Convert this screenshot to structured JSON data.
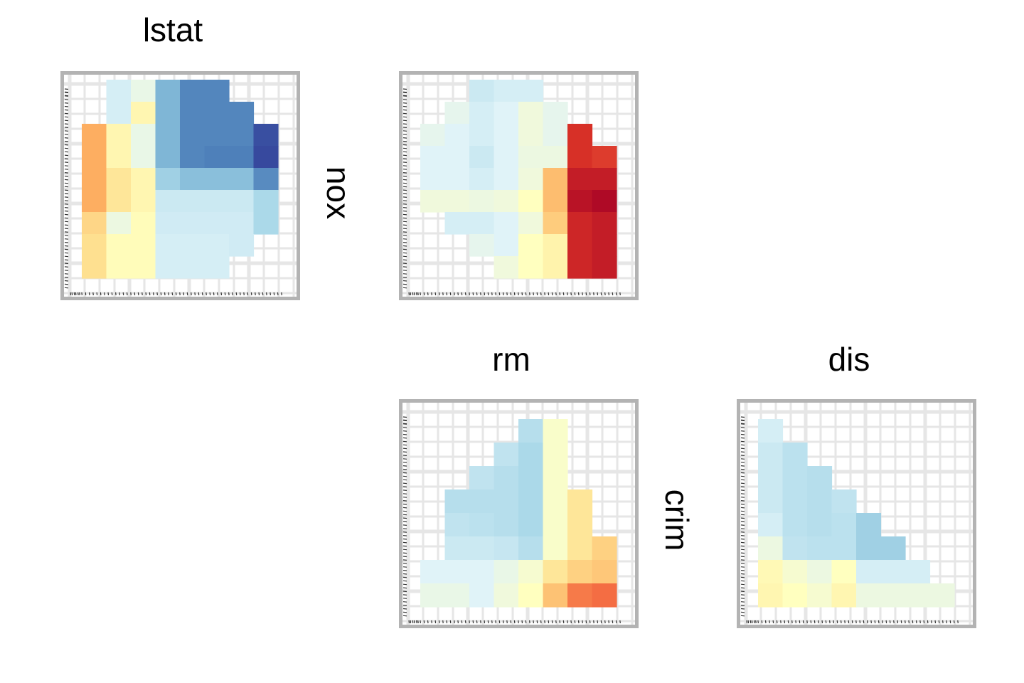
{
  "figure": {
    "col_labels": {
      "lstat": "lstat",
      "rm": "rm",
      "dis": "dis"
    },
    "row_labels": {
      "nox": "nox",
      "crim": "crim"
    }
  },
  "colors": {
    "frame": "#b3b3b3",
    "grid": "#e6e6e6",
    "palette_RdYlBu": [
      "#a50026",
      "#d73027",
      "#f46d43",
      "#fdae61",
      "#fee090",
      "#ffffbf",
      "#e0f3f8",
      "#abd9e9",
      "#74add1",
      "#4575b4",
      "#313695"
    ]
  },
  "chart_data": [
    {
      "type": "heatmap",
      "panel": "lstat-nox",
      "x_variable": "lstat",
      "y_variable": "nox",
      "grid_cols": 8,
      "grid_rows": 9,
      "grid": true,
      "cells": [
        {
          "col": 1,
          "row": 0,
          "value": 0.62
        },
        {
          "col": 2,
          "row": 0,
          "value": 0.57
        },
        {
          "col": 3,
          "row": 0,
          "value": 0.78
        },
        {
          "col": 4,
          "row": 0,
          "value": 0.87
        },
        {
          "col": 5,
          "row": 0,
          "value": 0.87
        },
        {
          "col": 1,
          "row": 1,
          "value": 0.62
        },
        {
          "col": 2,
          "row": 1,
          "value": 0.47
        },
        {
          "col": 3,
          "row": 1,
          "value": 0.78
        },
        {
          "col": 4,
          "row": 1,
          "value": 0.87
        },
        {
          "col": 5,
          "row": 1,
          "value": 0.87
        },
        {
          "col": 6,
          "row": 1,
          "value": 0.87
        },
        {
          "col": 0,
          "row": 2,
          "value": 0.3
        },
        {
          "col": 1,
          "row": 2,
          "value": 0.47
        },
        {
          "col": 2,
          "row": 2,
          "value": 0.57
        },
        {
          "col": 3,
          "row": 2,
          "value": 0.78
        },
        {
          "col": 4,
          "row": 2,
          "value": 0.87
        },
        {
          "col": 5,
          "row": 2,
          "value": 0.87
        },
        {
          "col": 6,
          "row": 2,
          "value": 0.87
        },
        {
          "col": 7,
          "row": 2,
          "value": 0.96
        },
        {
          "col": 0,
          "row": 3,
          "value": 0.3
        },
        {
          "col": 1,
          "row": 3,
          "value": 0.47
        },
        {
          "col": 2,
          "row": 3,
          "value": 0.57
        },
        {
          "col": 3,
          "row": 3,
          "value": 0.78
        },
        {
          "col": 4,
          "row": 3,
          "value": 0.87
        },
        {
          "col": 5,
          "row": 3,
          "value": 0.88
        },
        {
          "col": 6,
          "row": 3,
          "value": 0.88
        },
        {
          "col": 7,
          "row": 3,
          "value": 0.97
        },
        {
          "col": 0,
          "row": 4,
          "value": 0.3
        },
        {
          "col": 1,
          "row": 4,
          "value": 0.42
        },
        {
          "col": 2,
          "row": 4,
          "value": 0.47
        },
        {
          "col": 3,
          "row": 4,
          "value": 0.72
        },
        {
          "col": 4,
          "row": 4,
          "value": 0.76
        },
        {
          "col": 5,
          "row": 4,
          "value": 0.76
        },
        {
          "col": 6,
          "row": 4,
          "value": 0.76
        },
        {
          "col": 7,
          "row": 4,
          "value": 0.86
        },
        {
          "col": 0,
          "row": 5,
          "value": 0.3
        },
        {
          "col": 1,
          "row": 5,
          "value": 0.42
        },
        {
          "col": 2,
          "row": 5,
          "value": 0.47
        },
        {
          "col": 3,
          "row": 5,
          "value": 0.64
        },
        {
          "col": 4,
          "row": 5,
          "value": 0.64
        },
        {
          "col": 5,
          "row": 5,
          "value": 0.64
        },
        {
          "col": 6,
          "row": 5,
          "value": 0.64
        },
        {
          "col": 7,
          "row": 5,
          "value": 0.7
        },
        {
          "col": 0,
          "row": 6,
          "value": 0.38
        },
        {
          "col": 1,
          "row": 6,
          "value": 0.56
        },
        {
          "col": 2,
          "row": 6,
          "value": 0.49
        },
        {
          "col": 3,
          "row": 6,
          "value": 0.63
        },
        {
          "col": 4,
          "row": 6,
          "value": 0.63
        },
        {
          "col": 5,
          "row": 6,
          "value": 0.63
        },
        {
          "col": 6,
          "row": 6,
          "value": 0.63
        },
        {
          "col": 7,
          "row": 6,
          "value": 0.7
        },
        {
          "col": 0,
          "row": 7,
          "value": 0.4
        },
        {
          "col": 1,
          "row": 7,
          "value": 0.49
        },
        {
          "col": 2,
          "row": 7,
          "value": 0.49
        },
        {
          "col": 3,
          "row": 7,
          "value": 0.62
        },
        {
          "col": 4,
          "row": 7,
          "value": 0.62
        },
        {
          "col": 5,
          "row": 7,
          "value": 0.62
        },
        {
          "col": 6,
          "row": 7,
          "value": 0.63
        },
        {
          "col": 0,
          "row": 8,
          "value": 0.4
        },
        {
          "col": 1,
          "row": 8,
          "value": 0.49
        },
        {
          "col": 2,
          "row": 8,
          "value": 0.49
        },
        {
          "col": 3,
          "row": 8,
          "value": 0.62
        },
        {
          "col": 4,
          "row": 8,
          "value": 0.62
        },
        {
          "col": 5,
          "row": 8,
          "value": 0.62
        }
      ]
    },
    {
      "type": "heatmap",
      "panel": "rm-nox",
      "x_variable": "rm",
      "y_variable": "nox",
      "grid_cols": 8,
      "grid_rows": 9,
      "grid": true,
      "cells": [
        {
          "col": 2,
          "row": 0,
          "value": 0.64
        },
        {
          "col": 3,
          "row": 0,
          "value": 0.62
        },
        {
          "col": 4,
          "row": 0,
          "value": 0.62
        },
        {
          "col": 1,
          "row": 1,
          "value": 0.58
        },
        {
          "col": 2,
          "row": 1,
          "value": 0.62
        },
        {
          "col": 3,
          "row": 1,
          "value": 0.6
        },
        {
          "col": 4,
          "row": 1,
          "value": 0.55
        },
        {
          "col": 5,
          "row": 1,
          "value": 0.58
        },
        {
          "col": 0,
          "row": 2,
          "value": 0.58
        },
        {
          "col": 1,
          "row": 2,
          "value": 0.6
        },
        {
          "col": 2,
          "row": 2,
          "value": 0.62
        },
        {
          "col": 3,
          "row": 2,
          "value": 0.6
        },
        {
          "col": 4,
          "row": 2,
          "value": 0.55
        },
        {
          "col": 5,
          "row": 2,
          "value": 0.58
        },
        {
          "col": 6,
          "row": 2,
          "value": 0.1
        },
        {
          "col": 0,
          "row": 3,
          "value": 0.6
        },
        {
          "col": 1,
          "row": 3,
          "value": 0.6
        },
        {
          "col": 2,
          "row": 3,
          "value": 0.64
        },
        {
          "col": 3,
          "row": 3,
          "value": 0.6
        },
        {
          "col": 4,
          "row": 3,
          "value": 0.56
        },
        {
          "col": 5,
          "row": 3,
          "value": 0.56
        },
        {
          "col": 6,
          "row": 3,
          "value": 0.1
        },
        {
          "col": 7,
          "row": 3,
          "value": 0.12
        },
        {
          "col": 0,
          "row": 4,
          "value": 0.6
        },
        {
          "col": 1,
          "row": 4,
          "value": 0.6
        },
        {
          "col": 2,
          "row": 4,
          "value": 0.62
        },
        {
          "col": 3,
          "row": 4,
          "value": 0.6
        },
        {
          "col": 4,
          "row": 4,
          "value": 0.55
        },
        {
          "col": 5,
          "row": 4,
          "value": 0.33
        },
        {
          "col": 6,
          "row": 4,
          "value": 0.06
        },
        {
          "col": 7,
          "row": 4,
          "value": 0.06
        },
        {
          "col": 0,
          "row": 5,
          "value": 0.55
        },
        {
          "col": 1,
          "row": 5,
          "value": 0.55
        },
        {
          "col": 2,
          "row": 5,
          "value": 0.56
        },
        {
          "col": 3,
          "row": 5,
          "value": 0.55
        },
        {
          "col": 4,
          "row": 5,
          "value": 0.5
        },
        {
          "col": 5,
          "row": 5,
          "value": 0.33
        },
        {
          "col": 6,
          "row": 5,
          "value": 0.04
        },
        {
          "col": 7,
          "row": 5,
          "value": 0.02
        },
        {
          "col": 1,
          "row": 6,
          "value": 0.62
        },
        {
          "col": 2,
          "row": 6,
          "value": 0.62
        },
        {
          "col": 3,
          "row": 6,
          "value": 0.6
        },
        {
          "col": 4,
          "row": 6,
          "value": 0.55
        },
        {
          "col": 5,
          "row": 6,
          "value": 0.36
        },
        {
          "col": 6,
          "row": 6,
          "value": 0.08
        },
        {
          "col": 7,
          "row": 6,
          "value": 0.06
        },
        {
          "col": 2,
          "row": 7,
          "value": 0.58
        },
        {
          "col": 3,
          "row": 7,
          "value": 0.6
        },
        {
          "col": 4,
          "row": 7,
          "value": 0.5
        },
        {
          "col": 5,
          "row": 7,
          "value": 0.46
        },
        {
          "col": 6,
          "row": 7,
          "value": 0.08
        },
        {
          "col": 7,
          "row": 7,
          "value": 0.06
        },
        {
          "col": 3,
          "row": 8,
          "value": 0.55
        },
        {
          "col": 4,
          "row": 8,
          "value": 0.5
        },
        {
          "col": 5,
          "row": 8,
          "value": 0.46
        },
        {
          "col": 6,
          "row": 8,
          "value": 0.08
        },
        {
          "col": 7,
          "row": 8,
          "value": 0.06
        }
      ]
    },
    {
      "type": "heatmap",
      "panel": "rm-crim",
      "x_variable": "rm",
      "y_variable": "crim",
      "grid_cols": 8,
      "grid_rows": 8,
      "grid": true,
      "cells": [
        {
          "col": 4,
          "row": 0,
          "value": 0.68
        },
        {
          "col": 5,
          "row": 0,
          "value": 0.52
        },
        {
          "col": 3,
          "row": 1,
          "value": 0.66
        },
        {
          "col": 4,
          "row": 1,
          "value": 0.7
        },
        {
          "col": 5,
          "row": 1,
          "value": 0.52
        },
        {
          "col": 2,
          "row": 2,
          "value": 0.66
        },
        {
          "col": 3,
          "row": 2,
          "value": 0.68
        },
        {
          "col": 4,
          "row": 2,
          "value": 0.7
        },
        {
          "col": 5,
          "row": 2,
          "value": 0.52
        },
        {
          "col": 1,
          "row": 3,
          "value": 0.68
        },
        {
          "col": 2,
          "row": 3,
          "value": 0.68
        },
        {
          "col": 3,
          "row": 3,
          "value": 0.68
        },
        {
          "col": 4,
          "row": 3,
          "value": 0.7
        },
        {
          "col": 5,
          "row": 3,
          "value": 0.52
        },
        {
          "col": 6,
          "row": 3,
          "value": 0.42
        },
        {
          "col": 1,
          "row": 4,
          "value": 0.66
        },
        {
          "col": 2,
          "row": 4,
          "value": 0.67
        },
        {
          "col": 3,
          "row": 4,
          "value": 0.68
        },
        {
          "col": 4,
          "row": 4,
          "value": 0.7
        },
        {
          "col": 5,
          "row": 4,
          "value": 0.52
        },
        {
          "col": 6,
          "row": 4,
          "value": 0.42
        },
        {
          "col": 1,
          "row": 5,
          "value": 0.64
        },
        {
          "col": 2,
          "row": 5,
          "value": 0.64
        },
        {
          "col": 3,
          "row": 5,
          "value": 0.65
        },
        {
          "col": 4,
          "row": 5,
          "value": 0.68
        },
        {
          "col": 5,
          "row": 5,
          "value": 0.52
        },
        {
          "col": 6,
          "row": 5,
          "value": 0.42
        },
        {
          "col": 7,
          "row": 5,
          "value": 0.37
        },
        {
          "col": 0,
          "row": 6,
          "value": 0.6
        },
        {
          "col": 1,
          "row": 6,
          "value": 0.6
        },
        {
          "col": 2,
          "row": 6,
          "value": 0.6
        },
        {
          "col": 3,
          "row": 6,
          "value": 0.57
        },
        {
          "col": 4,
          "row": 6,
          "value": 0.53
        },
        {
          "col": 5,
          "row": 6,
          "value": 0.42
        },
        {
          "col": 6,
          "row": 6,
          "value": 0.37
        },
        {
          "col": 7,
          "row": 6,
          "value": 0.35
        },
        {
          "col": 0,
          "row": 7,
          "value": 0.57
        },
        {
          "col": 1,
          "row": 7,
          "value": 0.57
        },
        {
          "col": 2,
          "row": 7,
          "value": 0.6
        },
        {
          "col": 3,
          "row": 7,
          "value": 0.55
        },
        {
          "col": 4,
          "row": 7,
          "value": 0.5
        },
        {
          "col": 5,
          "row": 7,
          "value": 0.34
        },
        {
          "col": 6,
          "row": 7,
          "value": 0.22
        },
        {
          "col": 7,
          "row": 7,
          "value": 0.2
        }
      ]
    },
    {
      "type": "heatmap",
      "panel": "dis-crim",
      "x_variable": "dis",
      "y_variable": "crim",
      "grid_cols": 8,
      "grid_rows": 8,
      "grid": true,
      "cells": [
        {
          "col": 0,
          "row": 0,
          "value": 0.62
        },
        {
          "col": 0,
          "row": 1,
          "value": 0.64
        },
        {
          "col": 1,
          "row": 1,
          "value": 0.67
        },
        {
          "col": 0,
          "row": 2,
          "value": 0.64
        },
        {
          "col": 1,
          "row": 2,
          "value": 0.67
        },
        {
          "col": 2,
          "row": 2,
          "value": 0.68
        },
        {
          "col": 0,
          "row": 3,
          "value": 0.64
        },
        {
          "col": 1,
          "row": 3,
          "value": 0.67
        },
        {
          "col": 2,
          "row": 3,
          "value": 0.68
        },
        {
          "col": 3,
          "row": 3,
          "value": 0.66
        },
        {
          "col": 0,
          "row": 4,
          "value": 0.62
        },
        {
          "col": 1,
          "row": 4,
          "value": 0.67
        },
        {
          "col": 2,
          "row": 4,
          "value": 0.68
        },
        {
          "col": 3,
          "row": 4,
          "value": 0.67
        },
        {
          "col": 4,
          "row": 4,
          "value": 0.72
        },
        {
          "col": 0,
          "row": 5,
          "value": 0.56
        },
        {
          "col": 1,
          "row": 5,
          "value": 0.66
        },
        {
          "col": 2,
          "row": 5,
          "value": 0.67
        },
        {
          "col": 3,
          "row": 5,
          "value": 0.67
        },
        {
          "col": 4,
          "row": 5,
          "value": 0.72
        },
        {
          "col": 5,
          "row": 5,
          "value": 0.72
        },
        {
          "col": 0,
          "row": 6,
          "value": 0.48
        },
        {
          "col": 1,
          "row": 6,
          "value": 0.53
        },
        {
          "col": 2,
          "row": 6,
          "value": 0.56
        },
        {
          "col": 3,
          "row": 6,
          "value": 0.5
        },
        {
          "col": 4,
          "row": 6,
          "value": 0.62
        },
        {
          "col": 5,
          "row": 6,
          "value": 0.62
        },
        {
          "col": 6,
          "row": 6,
          "value": 0.62
        },
        {
          "col": 0,
          "row": 7,
          "value": 0.47
        },
        {
          "col": 1,
          "row": 7,
          "value": 0.5
        },
        {
          "col": 2,
          "row": 7,
          "value": 0.53
        },
        {
          "col": 3,
          "row": 7,
          "value": 0.47
        },
        {
          "col": 4,
          "row": 7,
          "value": 0.56
        },
        {
          "col": 5,
          "row": 7,
          "value": 0.56
        },
        {
          "col": 6,
          "row": 7,
          "value": 0.56
        },
        {
          "col": 7,
          "row": 7,
          "value": 0.56
        }
      ]
    }
  ]
}
